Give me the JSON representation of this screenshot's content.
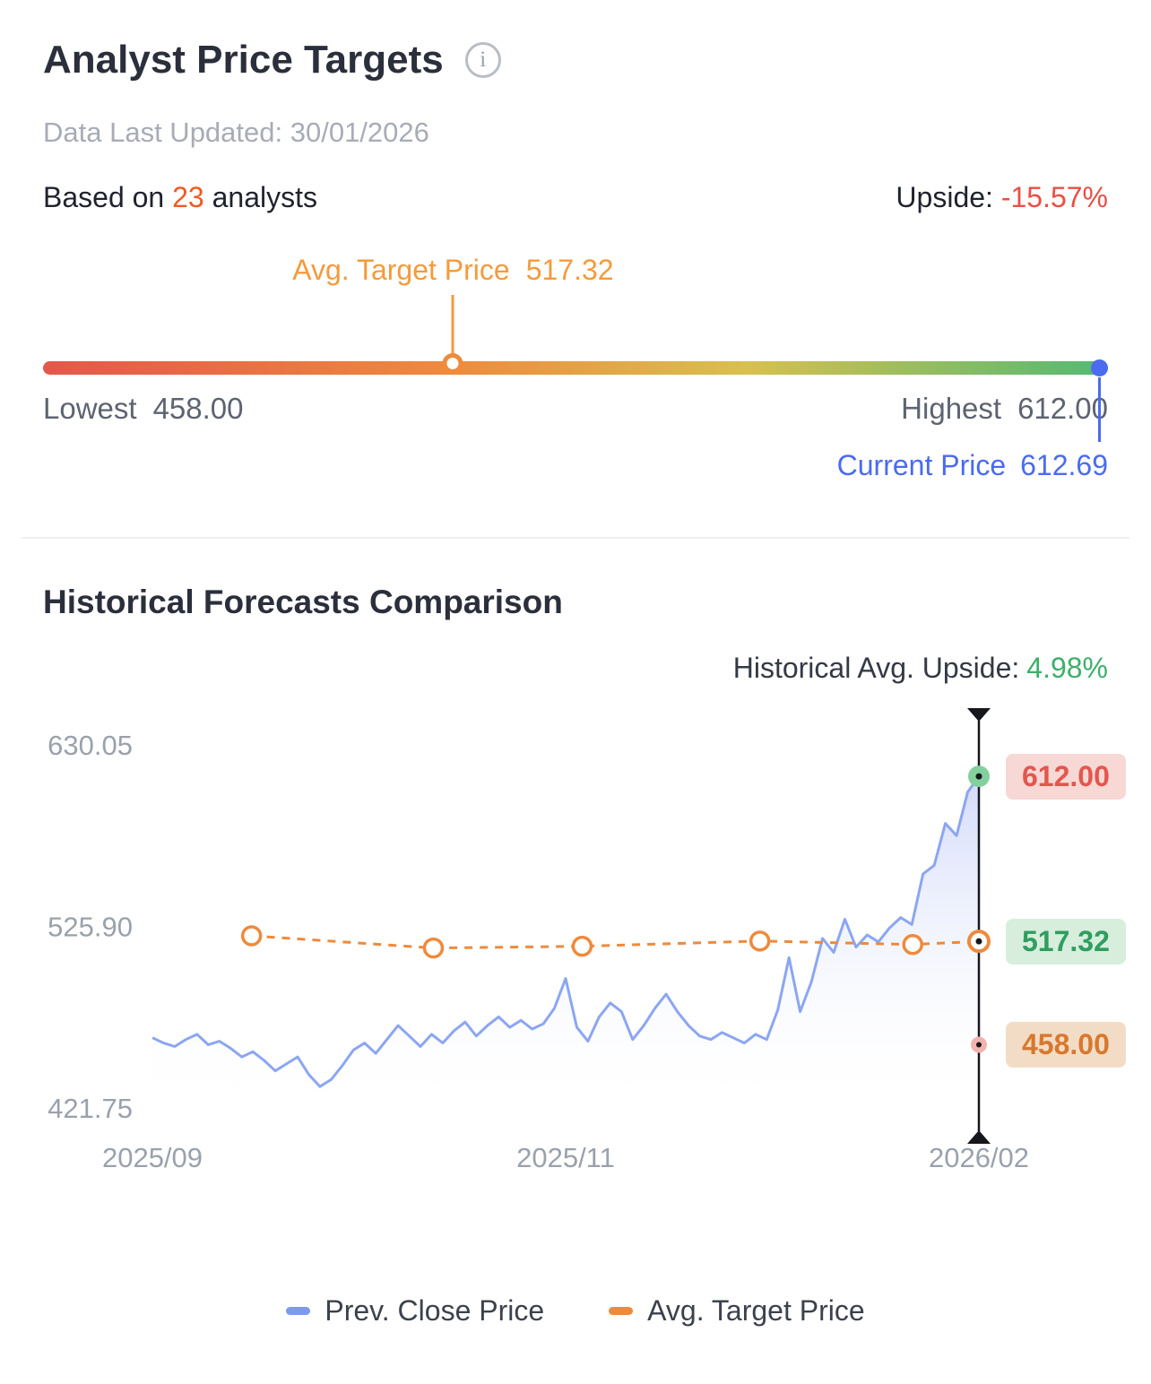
{
  "header": {
    "title": "Analyst Price Targets",
    "last_updated": "Data Last Updated: 30/01/2026",
    "analysts_prefix": "Based on ",
    "analysts_count": "23",
    "analysts_suffix": " analysts",
    "upside_label": "Upside: ",
    "upside_value": "-15.57%"
  },
  "target_bar": {
    "avg_label": "Avg. Target Price",
    "avg_value": "517.32",
    "avg_position_pct": 38.5,
    "lowest_label": "Lowest",
    "lowest_value": "458.00",
    "highest_label": "Highest",
    "highest_value": "612.00",
    "current_label": "Current Price",
    "current_value": "612.69",
    "bar_gradient": [
      "#e4574b",
      "#ee8a3e",
      "#d8c04e",
      "#52b973"
    ],
    "current_color": "#4a6bf0",
    "avg_color": "#f59a3b"
  },
  "history": {
    "title": "Historical Forecasts Comparison",
    "upside_label": "Historical Avg. Upside:",
    "upside_value": "4.98%"
  },
  "chart_data": {
    "type": "line",
    "title": "Historical Forecasts Comparison",
    "y_ticks": [
      "630.05",
      "525.90",
      "421.75"
    ],
    "ylim": [
      400,
      648
    ],
    "x_ticks": [
      {
        "label": "2025/09",
        "frac": 0
      },
      {
        "label": "2025/11",
        "frac": 0.5
      },
      {
        "label": "2026/02",
        "frac": 1
      }
    ],
    "grid": false,
    "legend_position": "bottom",
    "series": [
      {
        "name": "Prev. Close Price",
        "color": "#8ba6f2",
        "values": [
          462,
          459,
          457,
          461,
          464,
          458,
          460,
          456,
          451,
          454,
          449,
          443,
          447,
          451,
          441,
          434,
          438,
          446,
          455,
          459,
          453,
          461,
          469,
          463,
          457,
          464,
          459,
          466,
          471,
          463,
          469,
          474,
          468,
          472,
          467,
          470,
          479,
          496,
          468,
          460,
          474,
          482,
          477,
          461,
          469,
          479,
          487,
          477,
          469,
          463,
          461,
          465,
          462,
          459,
          464,
          461,
          478,
          508,
          477,
          494,
          519,
          511,
          530,
          514,
          521,
          517,
          525,
          531,
          527,
          556,
          561,
          585,
          578,
          603,
          612
        ]
      },
      {
        "name": "Avg. Target Price",
        "color": "#ee8a3c",
        "points": [
          {
            "frac": 0.12,
            "value": 520.5
          },
          {
            "frac": 0.34,
            "value": 513.5
          },
          {
            "frac": 0.52,
            "value": 514.5
          },
          {
            "frac": 0.735,
            "value": 517.5
          },
          {
            "frac": 0.92,
            "value": 515.5
          },
          {
            "frac": 1.0,
            "value": 517.32
          }
        ]
      }
    ],
    "end_markers": [
      {
        "type": "high",
        "value": 612.0,
        "label": "612.00"
      },
      {
        "type": "avg",
        "value": 517.32,
        "label": "517.32"
      },
      {
        "type": "low",
        "value": 458.0,
        "label": "458.00"
      }
    ],
    "legend": [
      "Prev. Close Price",
      "Avg. Target Price"
    ]
  }
}
